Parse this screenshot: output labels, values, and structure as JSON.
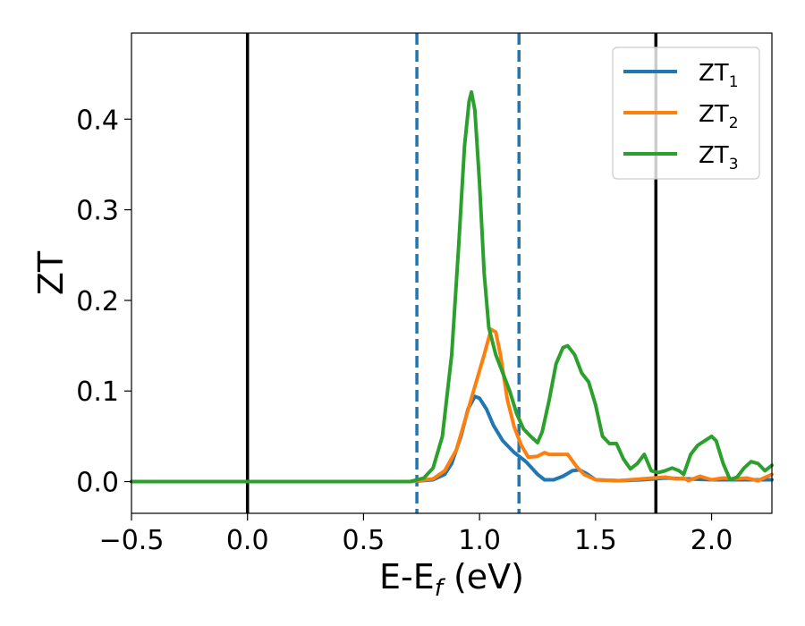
{
  "chart_data": {
    "type": "line",
    "xlabel": {
      "main": "E-E",
      "sub": "f",
      "tail": " (eV)"
    },
    "ylabel": "ZT",
    "xlim": [
      -0.5,
      2.26
    ],
    "ylim": [
      -0.035,
      0.495
    ],
    "xticks": [
      -0.5,
      0.0,
      0.5,
      1.0,
      1.5,
      2.0
    ],
    "xtick_labels": [
      "−0.5",
      "0.0",
      "0.5",
      "1.0",
      "1.5",
      "2.0"
    ],
    "yticks": [
      0.0,
      0.1,
      0.2,
      0.3,
      0.4
    ],
    "ytick_labels": [
      "0.0",
      "0.1",
      "0.2",
      "0.3",
      "0.4"
    ],
    "grid": false,
    "legend_position": "top-right",
    "vlines": [
      {
        "x": 0.0,
        "style": "solid",
        "color": "#000000"
      },
      {
        "x": 1.76,
        "style": "solid",
        "color": "#000000"
      },
      {
        "x": 0.73,
        "style": "dashed",
        "color": "#1f77b4"
      },
      {
        "x": 1.17,
        "style": "dashed",
        "color": "#1f77b4"
      }
    ],
    "series": [
      {
        "name": "ZT",
        "sub": "1",
        "color": "#1f77b4",
        "points": [
          [
            -0.5,
            0
          ],
          [
            0.7,
            0
          ],
          [
            0.8,
            0.002
          ],
          [
            0.85,
            0.008
          ],
          [
            0.88,
            0.02
          ],
          [
            0.92,
            0.05
          ],
          [
            0.95,
            0.08
          ],
          [
            0.98,
            0.094
          ],
          [
            1.0,
            0.092
          ],
          [
            1.03,
            0.08
          ],
          [
            1.06,
            0.062
          ],
          [
            1.1,
            0.045
          ],
          [
            1.15,
            0.032
          ],
          [
            1.2,
            0.022
          ],
          [
            1.25,
            0.008
          ],
          [
            1.28,
            0.002
          ],
          [
            1.32,
            0.002
          ],
          [
            1.36,
            0.006
          ],
          [
            1.4,
            0.012
          ],
          [
            1.43,
            0.013
          ],
          [
            1.46,
            0.009
          ],
          [
            1.5,
            0.002
          ],
          [
            1.6,
            0.001
          ],
          [
            1.7,
            0.002
          ],
          [
            1.8,
            0.004
          ],
          [
            1.9,
            0.003
          ],
          [
            2.0,
            0.002
          ],
          [
            2.1,
            0.002
          ],
          [
            2.26,
            0.002
          ]
        ]
      },
      {
        "name": "ZT",
        "sub": "2",
        "color": "#ff7f0e",
        "points": [
          [
            -0.5,
            0
          ],
          [
            0.7,
            0
          ],
          [
            0.8,
            0.003
          ],
          [
            0.85,
            0.012
          ],
          [
            0.9,
            0.035
          ],
          [
            0.94,
            0.07
          ],
          [
            0.98,
            0.105
          ],
          [
            1.02,
            0.14
          ],
          [
            1.05,
            0.168
          ],
          [
            1.07,
            0.165
          ],
          [
            1.09,
            0.14
          ],
          [
            1.12,
            0.09
          ],
          [
            1.15,
            0.06
          ],
          [
            1.18,
            0.04
          ],
          [
            1.21,
            0.027
          ],
          [
            1.25,
            0.028
          ],
          [
            1.28,
            0.032
          ],
          [
            1.3,
            0.03
          ],
          [
            1.35,
            0.03
          ],
          [
            1.38,
            0.03
          ],
          [
            1.42,
            0.016
          ],
          [
            1.45,
            0.008
          ],
          [
            1.5,
            0.002
          ],
          [
            1.6,
            0.001
          ],
          [
            1.7,
            0.003
          ],
          [
            1.75,
            0.004
          ],
          [
            1.8,
            0.005
          ],
          [
            1.85,
            0.003
          ],
          [
            1.88,
            0.004
          ],
          [
            1.9,
            0.001
          ],
          [
            1.95,
            0.006
          ],
          [
            2.0,
            0.002
          ],
          [
            2.05,
            0.004
          ],
          [
            2.1,
            0.003
          ],
          [
            2.15,
            0.004
          ],
          [
            2.2,
            0.001
          ],
          [
            2.26,
            0.008
          ]
        ]
      },
      {
        "name": "ZT",
        "sub": "3",
        "color": "#2ca02c",
        "points": [
          [
            -0.5,
            0
          ],
          [
            0.7,
            0
          ],
          [
            0.76,
            0.004
          ],
          [
            0.8,
            0.015
          ],
          [
            0.84,
            0.05
          ],
          [
            0.88,
            0.14
          ],
          [
            0.91,
            0.26
          ],
          [
            0.935,
            0.37
          ],
          [
            0.955,
            0.42
          ],
          [
            0.965,
            0.43
          ],
          [
            0.98,
            0.41
          ],
          [
            1.0,
            0.33
          ],
          [
            1.02,
            0.23
          ],
          [
            1.04,
            0.17
          ],
          [
            1.07,
            0.14
          ],
          [
            1.1,
            0.12
          ],
          [
            1.13,
            0.1
          ],
          [
            1.16,
            0.075
          ],
          [
            1.19,
            0.058
          ],
          [
            1.22,
            0.05
          ],
          [
            1.25,
            0.043
          ],
          [
            1.27,
            0.055
          ],
          [
            1.3,
            0.09
          ],
          [
            1.33,
            0.13
          ],
          [
            1.36,
            0.148
          ],
          [
            1.38,
            0.15
          ],
          [
            1.41,
            0.14
          ],
          [
            1.44,
            0.12
          ],
          [
            1.47,
            0.11
          ],
          [
            1.5,
            0.085
          ],
          [
            1.53,
            0.05
          ],
          [
            1.56,
            0.042
          ],
          [
            1.59,
            0.042
          ],
          [
            1.62,
            0.025
          ],
          [
            1.65,
            0.014
          ],
          [
            1.68,
            0.02
          ],
          [
            1.71,
            0.03
          ],
          [
            1.74,
            0.012
          ],
          [
            1.77,
            0.01
          ],
          [
            1.8,
            0.012
          ],
          [
            1.83,
            0.015
          ],
          [
            1.86,
            0.012
          ],
          [
            1.88,
            0.008
          ],
          [
            1.91,
            0.03
          ],
          [
            1.94,
            0.04
          ],
          [
            1.97,
            0.045
          ],
          [
            2.0,
            0.05
          ],
          [
            2.02,
            0.045
          ],
          [
            2.05,
            0.02
          ],
          [
            2.08,
            0.002
          ],
          [
            2.11,
            0.005
          ],
          [
            2.14,
            0.015
          ],
          [
            2.17,
            0.022
          ],
          [
            2.2,
            0.02
          ],
          [
            2.23,
            0.012
          ],
          [
            2.26,
            0.018
          ]
        ]
      }
    ]
  }
}
